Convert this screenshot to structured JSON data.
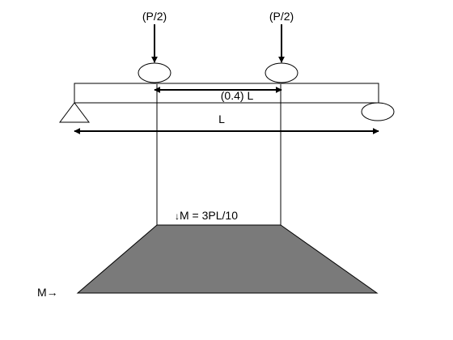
{
  "loads": {
    "left_label": "(P/2)",
    "right_label": "(P/2)"
  },
  "dimensions": {
    "spacing_label": "(0.4) L",
    "span_label": "L"
  },
  "moment": {
    "peak_label": "M = 3PL/10",
    "axis_label": "M→",
    "peak_marker": "↓"
  },
  "colors": {
    "moment_fill": "#7a7a7a",
    "stroke": "#000000",
    "background": "#ffffff"
  }
}
